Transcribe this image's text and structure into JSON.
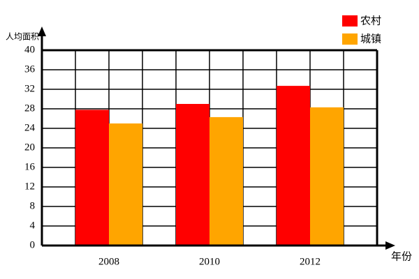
{
  "chart_data": {
    "type": "bar",
    "y_label": "人均面积",
    "x_label": "年份",
    "categories": [
      "2008",
      "2010",
      "2012"
    ],
    "series": [
      {
        "name": "农村",
        "color": "#ff0000",
        "values": [
          27.8,
          29,
          32.7
        ]
      },
      {
        "name": "城镇",
        "color": "#ffa500",
        "values": [
          25,
          26.3,
          28.3
        ]
      }
    ],
    "ylim": [
      0,
      40
    ],
    "yticks": [
      0,
      4,
      8,
      12,
      16,
      20,
      24,
      28,
      32,
      36,
      40
    ],
    "grid": true,
    "legend": "top-right"
  }
}
